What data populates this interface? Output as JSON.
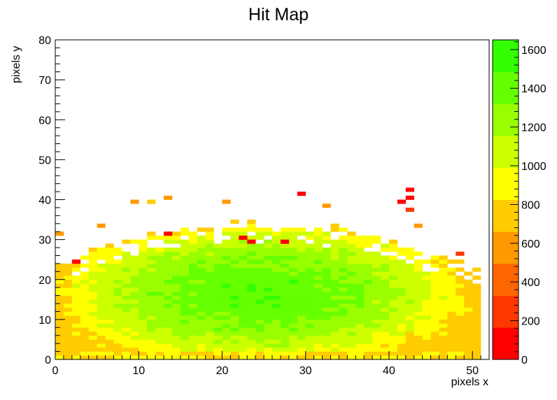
{
  "chart_data": {
    "type": "heatmap",
    "title": "Hit Map",
    "xlabel": "pixels x",
    "ylabel": "pixels y",
    "xlim": [
      0,
      52
    ],
    "ylim": [
      0,
      80
    ],
    "x_ticks": [
      0,
      10,
      20,
      30,
      40,
      50
    ],
    "y_ticks": [
      0,
      10,
      20,
      30,
      40,
      50,
      60,
      70,
      80
    ],
    "nbins_x": 52,
    "nbins_y": 80,
    "colorbar": {
      "min": 0,
      "max": 1650,
      "ticks": [
        0,
        200,
        400,
        600,
        800,
        1000,
        1200,
        1400,
        1600
      ],
      "levels": 20
    },
    "palette": [
      "#ff0000",
      "#ff3800",
      "#ff6600",
      "#ff9900",
      "#ffcc00",
      "#ffff00",
      "#ccff00",
      "#99ff00",
      "#66ff00",
      "#33ff00"
    ],
    "occupied_region": {
      "description_ranges": "x bins 1-51, y bins 1-34 mostly filled",
      "center_value_peak": 1450,
      "edge_value": 750,
      "sparse_points": [
        [
          3,
          25,
          100
        ],
        [
          10,
          40,
          500
        ],
        [
          12,
          40,
          700
        ],
        [
          14,
          41,
          500
        ],
        [
          21,
          40,
          600
        ],
        [
          23,
          31,
          50
        ],
        [
          24,
          30,
          50
        ],
        [
          28,
          30,
          50
        ],
        [
          30,
          42,
          100
        ],
        [
          33,
          39,
          500
        ],
        [
          43,
          43,
          100
        ],
        [
          43,
          41,
          100
        ],
        [
          42,
          40,
          100
        ],
        [
          43,
          38,
          300
        ],
        [
          44,
          34,
          500
        ],
        [
          49,
          27,
          300
        ],
        [
          14,
          32,
          100
        ],
        [
          1,
          32,
          600
        ],
        [
          6,
          34,
          600
        ]
      ]
    }
  }
}
